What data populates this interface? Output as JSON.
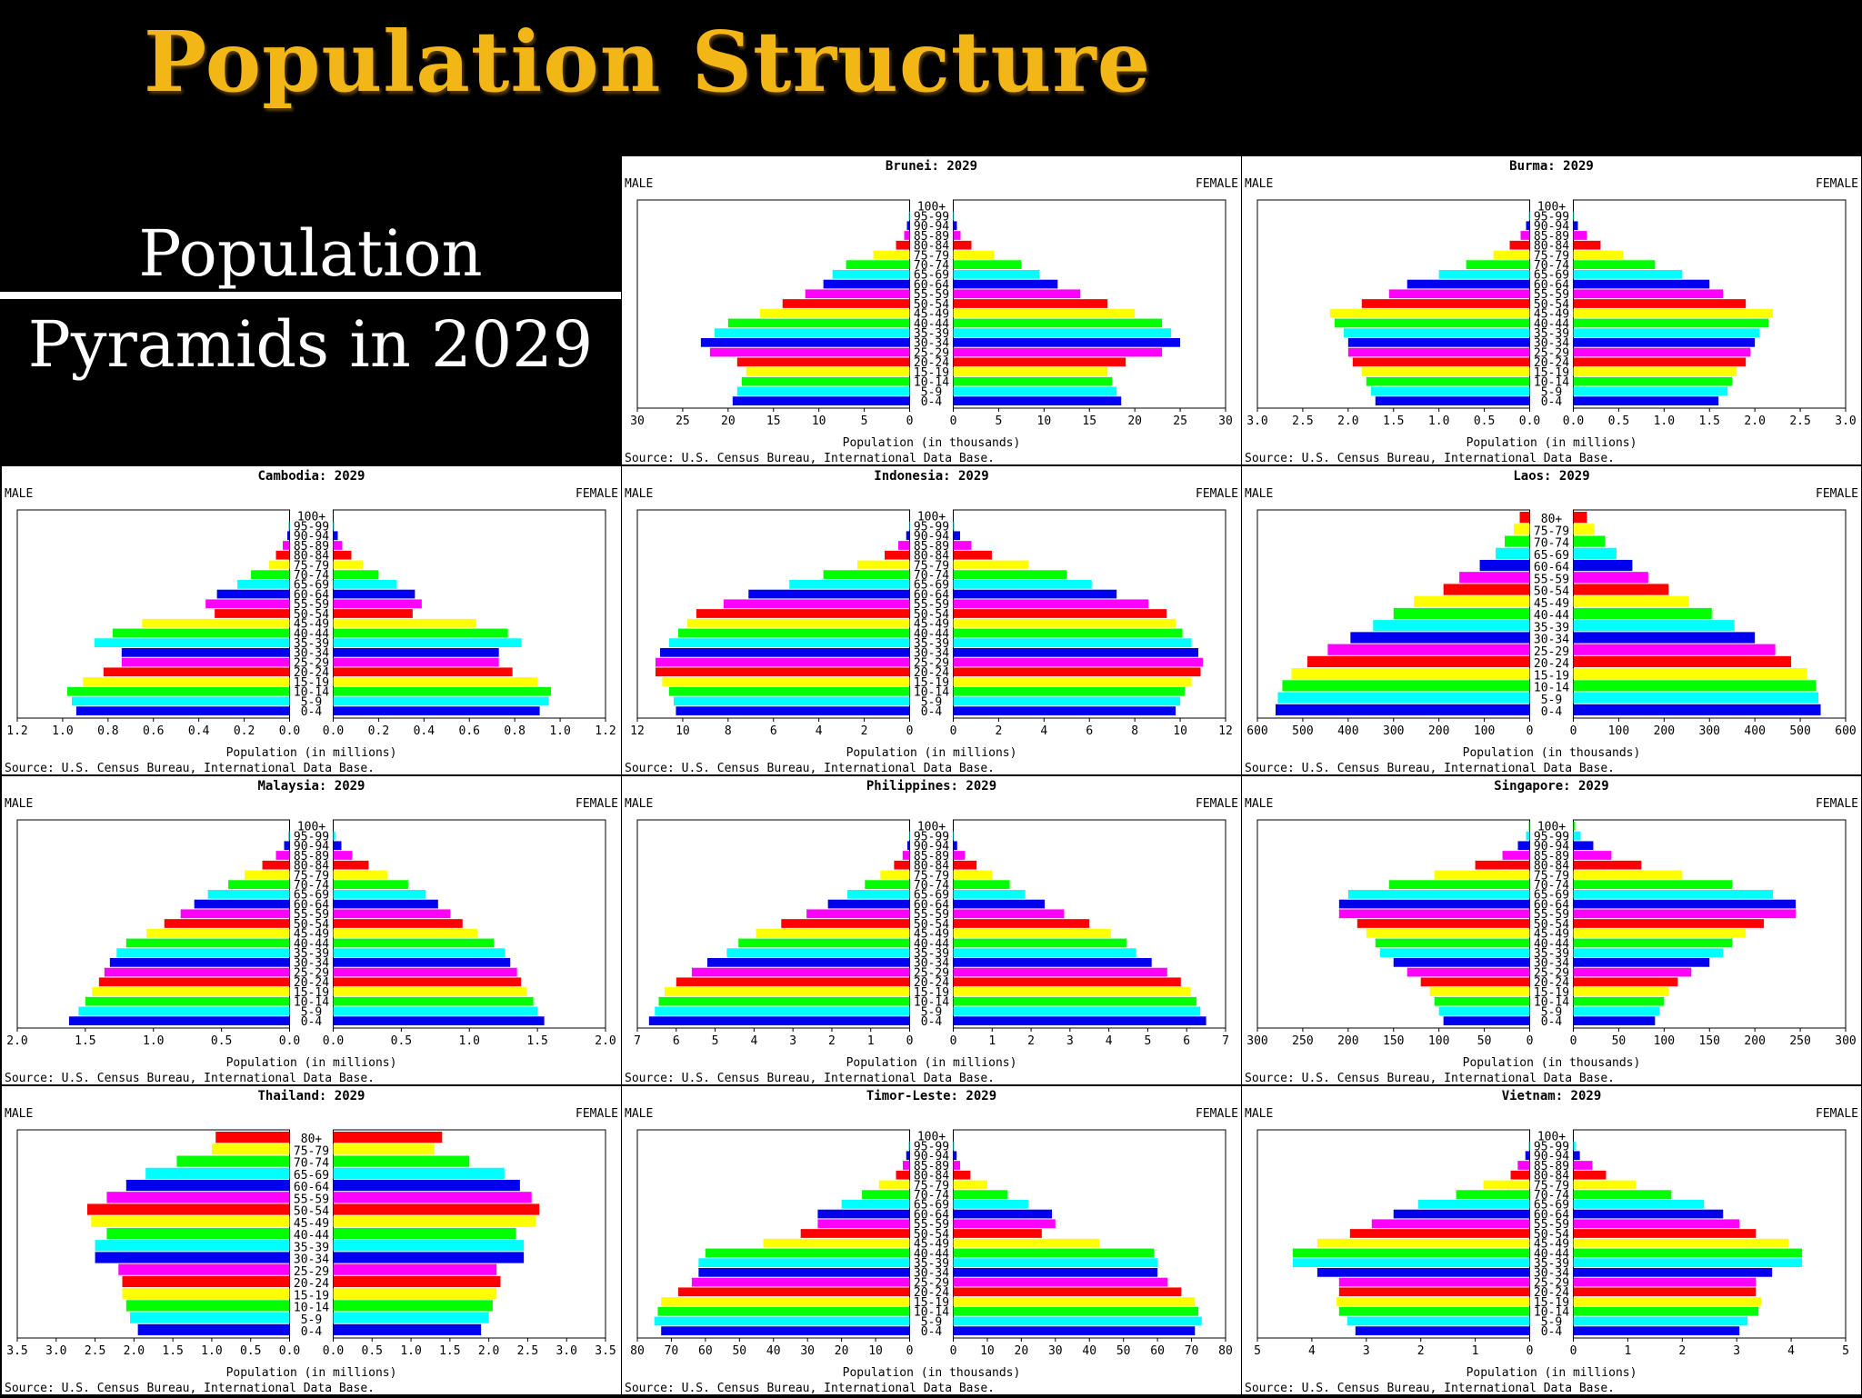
{
  "title": "Population Structure",
  "subtitle": [
    "Population",
    "Pyramids in 2029"
  ],
  "colors": {
    "title": "#F2B617",
    "bands": [
      "#0000EE",
      "#00FFFF",
      "#00FF00",
      "#FFFF00",
      "#FF0000",
      "#FF00FF"
    ]
  },
  "chart_data": [
    {
      "type": "bar",
      "country": "Brunei",
      "title": "Brunei: 2029",
      "male_label": "MALE",
      "female_label": "FEMALE",
      "xlabel": "Population (in thousands)",
      "source": "Source: U.S. Census Bureau, International Data Base.",
      "xlim": [
        0,
        30
      ],
      "ticks": [
        "30",
        "25",
        "20",
        "15",
        "10",
        "5",
        "0",
        "0",
        "5",
        "10",
        "15",
        "20",
        "25",
        "30"
      ],
      "age_groups": [
        "0-4",
        "5-9",
        "10-14",
        "15-19",
        "20-24",
        "25-29",
        "30-34",
        "35-39",
        "40-44",
        "45-49",
        "50-54",
        "55-59",
        "60-64",
        "65-69",
        "70-74",
        "75-79",
        "80-84",
        "85-89",
        "90-94",
        "95-99",
        "100+"
      ],
      "male": [
        19.5,
        19,
        18.5,
        18,
        19,
        22,
        23,
        21.5,
        20,
        16.5,
        14,
        11.5,
        9.5,
        8.5,
        7,
        4,
        1.5,
        0.6,
        0.3,
        0.1,
        0
      ],
      "female": [
        18.5,
        18,
        17.5,
        17,
        19,
        23,
        25,
        24,
        23,
        20,
        17,
        14,
        11.5,
        9.5,
        7.5,
        4.5,
        2,
        0.8,
        0.4,
        0.1,
        0
      ]
    },
    {
      "type": "bar",
      "country": "Burma",
      "title": "Burma: 2029",
      "male_label": "MALE",
      "female_label": "FEMALE",
      "xlabel": "Population (in millions)",
      "source": "Source: U.S. Census Bureau, International Data Base.",
      "xlim": [
        0,
        3.0
      ],
      "ticks": [
        "3.0",
        "2.5",
        "2.0",
        "1.5",
        "1.0",
        "0.5",
        "0.0",
        "0.0",
        "0.5",
        "1.0",
        "1.5",
        "2.0",
        "2.5",
        "3.0"
      ],
      "age_groups": [
        "0-4",
        "5-9",
        "10-14",
        "15-19",
        "20-24",
        "25-29",
        "30-34",
        "35-39",
        "40-44",
        "45-49",
        "50-54",
        "55-59",
        "60-64",
        "65-69",
        "70-74",
        "75-79",
        "80-84",
        "85-89",
        "90-94",
        "95-99",
        "100+"
      ],
      "male": [
        1.7,
        1.75,
        1.8,
        1.85,
        1.95,
        2.0,
        2.0,
        2.05,
        2.15,
        2.2,
        1.85,
        1.55,
        1.35,
        1.0,
        0.7,
        0.4,
        0.22,
        0.1,
        0.04,
        0.01,
        0
      ],
      "female": [
        1.6,
        1.7,
        1.75,
        1.8,
        1.9,
        1.95,
        2.0,
        2.05,
        2.15,
        2.2,
        1.9,
        1.65,
        1.5,
        1.2,
        0.9,
        0.55,
        0.3,
        0.15,
        0.05,
        0.01,
        0
      ]
    },
    {
      "type": "bar",
      "country": "Cambodia",
      "title": "Cambodia: 2029",
      "male_label": "MALE",
      "female_label": "FEMALE",
      "xlabel": "Population (in millions)",
      "source": "Source: U.S. Census Bureau, International Data Base.",
      "xlim": [
        0,
        1.2
      ],
      "ticks": [
        "1.2",
        "1.0",
        "0.8",
        "0.6",
        "0.4",
        "0.2",
        "0.0",
        "0.0",
        "0.2",
        "0.4",
        "0.6",
        "0.8",
        "1.0",
        "1.2"
      ],
      "age_groups": [
        "0-4",
        "5-9",
        "10-14",
        "15-19",
        "20-24",
        "25-29",
        "30-34",
        "35-39",
        "40-44",
        "45-49",
        "50-54",
        "55-59",
        "60-64",
        "65-69",
        "70-74",
        "75-79",
        "80-84",
        "85-89",
        "90-94",
        "95-99",
        "100+"
      ],
      "male": [
        0.94,
        0.96,
        0.98,
        0.91,
        0.82,
        0.74,
        0.74,
        0.86,
        0.78,
        0.65,
        0.33,
        0.37,
        0.32,
        0.23,
        0.17,
        0.09,
        0.06,
        0.03,
        0.01,
        0.005,
        0
      ],
      "female": [
        0.91,
        0.95,
        0.96,
        0.9,
        0.79,
        0.73,
        0.73,
        0.83,
        0.77,
        0.63,
        0.35,
        0.39,
        0.36,
        0.28,
        0.2,
        0.13,
        0.08,
        0.04,
        0.02,
        0.005,
        0
      ]
    },
    {
      "type": "bar",
      "country": "Indonesia",
      "title": "Indonesia: 2029",
      "male_label": "MALE",
      "female_label": "FEMALE",
      "xlabel": "Population (in millions)",
      "source": "Source: U.S. Census Bureau, International Data Base.",
      "xlim": [
        0,
        12
      ],
      "ticks": [
        "12",
        "10",
        "8",
        "6",
        "4",
        "2",
        "0",
        "0",
        "2",
        "4",
        "6",
        "8",
        "10",
        "12"
      ],
      "age_groups": [
        "0-4",
        "5-9",
        "10-14",
        "15-19",
        "20-24",
        "25-29",
        "30-34",
        "35-39",
        "40-44",
        "45-49",
        "50-54",
        "55-59",
        "60-64",
        "65-69",
        "70-74",
        "75-79",
        "80-84",
        "85-89",
        "90-94",
        "95-99",
        "100+"
      ],
      "male": [
        10.3,
        10.4,
        10.6,
        10.9,
        11.2,
        11.2,
        11.0,
        10.6,
        10.2,
        9.8,
        9.4,
        8.2,
        7.1,
        5.3,
        3.8,
        2.3,
        1.1,
        0.5,
        0.15,
        0.03,
        0
      ],
      "female": [
        9.8,
        10.0,
        10.2,
        10.5,
        10.9,
        11.0,
        10.8,
        10.5,
        10.1,
        9.8,
        9.4,
        8.6,
        7.2,
        6.1,
        5.0,
        3.3,
        1.7,
        0.8,
        0.3,
        0.05,
        0
      ]
    },
    {
      "type": "bar",
      "country": "Laos",
      "title": "Laos: 2029",
      "male_label": "MALE",
      "female_label": "FEMALE",
      "xlabel": "Population (in thousands)",
      "source": "Source: U.S. Census Bureau, International Data Base.",
      "xlim": [
        0,
        600
      ],
      "ticks": [
        "600",
        "500",
        "400",
        "300",
        "200",
        "100",
        "0",
        "0",
        "100",
        "200",
        "300",
        "400",
        "500",
        "600"
      ],
      "age_groups": [
        "0-4",
        "5-9",
        "10-14",
        "15-19",
        "20-24",
        "25-29",
        "30-34",
        "35-39",
        "40-44",
        "45-49",
        "50-54",
        "55-59",
        "60-64",
        "65-69",
        "70-74",
        "75-79",
        "80+"
      ],
      "male": [
        560,
        555,
        545,
        525,
        490,
        445,
        395,
        345,
        300,
        255,
        190,
        155,
        110,
        75,
        55,
        35,
        22
      ],
      "female": [
        545,
        540,
        535,
        515,
        480,
        445,
        400,
        355,
        305,
        255,
        210,
        165,
        130,
        95,
        70,
        45,
        30
      ]
    },
    {
      "type": "bar",
      "country": "Malaysia",
      "title": "Malaysia: 2029",
      "male_label": "MALE",
      "female_label": "FEMALE",
      "xlabel": "Population (in millions)",
      "source": "Source: U.S. Census Bureau, International Data Base.",
      "xlim": [
        0,
        2.0
      ],
      "ticks": [
        "2.0",
        "1.5",
        "1.0",
        "0.5",
        "0.0",
        "0.0",
        "0.5",
        "1.0",
        "1.5",
        "2.0"
      ],
      "age_groups": [
        "0-4",
        "5-9",
        "10-14",
        "15-19",
        "20-24",
        "25-29",
        "30-34",
        "35-39",
        "40-44",
        "45-49",
        "50-54",
        "55-59",
        "60-64",
        "65-69",
        "70-74",
        "75-79",
        "80-84",
        "85-89",
        "90-94",
        "95-99",
        "100+"
      ],
      "male": [
        1.62,
        1.55,
        1.5,
        1.45,
        1.4,
        1.36,
        1.32,
        1.27,
        1.2,
        1.05,
        0.92,
        0.8,
        0.7,
        0.6,
        0.45,
        0.33,
        0.2,
        0.1,
        0.04,
        0.01,
        0
      ],
      "female": [
        1.55,
        1.5,
        1.47,
        1.42,
        1.38,
        1.35,
        1.3,
        1.26,
        1.18,
        1.06,
        0.95,
        0.86,
        0.77,
        0.68,
        0.55,
        0.4,
        0.26,
        0.14,
        0.06,
        0.015,
        0
      ]
    },
    {
      "type": "bar",
      "country": "Philippines",
      "title": "Philippines: 2029",
      "male_label": "MALE",
      "female_label": "FEMALE",
      "xlabel": "Population (in millions)",
      "source": "Source: U.S. Census Bureau, International Data Base.",
      "xlim": [
        0,
        7
      ],
      "ticks": [
        "7",
        "6",
        "5",
        "4",
        "3",
        "2",
        "1",
        "0",
        "0",
        "1",
        "2",
        "3",
        "4",
        "5",
        "6",
        "7"
      ],
      "age_groups": [
        "0-4",
        "5-9",
        "10-14",
        "15-19",
        "20-24",
        "25-29",
        "30-34",
        "35-39",
        "40-44",
        "45-49",
        "50-54",
        "55-59",
        "60-64",
        "65-69",
        "70-74",
        "75-79",
        "80-84",
        "85-89",
        "90-94",
        "95-99",
        "100+"
      ],
      "male": [
        6.7,
        6.55,
        6.45,
        6.3,
        6.0,
        5.6,
        5.2,
        4.7,
        4.4,
        3.95,
        3.3,
        2.65,
        2.1,
        1.6,
        1.15,
        0.75,
        0.4,
        0.18,
        0.06,
        0.015,
        0
      ],
      "female": [
        6.5,
        6.35,
        6.25,
        6.1,
        5.85,
        5.5,
        5.1,
        4.7,
        4.45,
        4.05,
        3.5,
        2.85,
        2.35,
        1.85,
        1.45,
        1.0,
        0.6,
        0.3,
        0.1,
        0.02,
        0
      ]
    },
    {
      "type": "bar",
      "country": "Singapore",
      "title": "Singapore: 2029",
      "male_label": "MALE",
      "female_label": "FEMALE",
      "xlabel": "Population (in thousands)",
      "source": "Source: U.S. Census Bureau, International Data Base.",
      "xlim": [
        0,
        300
      ],
      "ticks": [
        "300",
        "250",
        "200",
        "150",
        "100",
        "50",
        "0",
        "0",
        "50",
        "100",
        "150",
        "200",
        "250",
        "300"
      ],
      "age_groups": [
        "0-4",
        "5-9",
        "10-14",
        "15-19",
        "20-24",
        "25-29",
        "30-34",
        "35-39",
        "40-44",
        "45-49",
        "50-54",
        "55-59",
        "60-64",
        "65-69",
        "70-74",
        "75-79",
        "80-84",
        "85-89",
        "90-94",
        "95-99",
        "100+"
      ],
      "male": [
        95,
        100,
        105,
        110,
        120,
        135,
        150,
        165,
        170,
        180,
        190,
        210,
        210,
        200,
        155,
        105,
        60,
        30,
        13,
        4,
        1
      ],
      "female": [
        90,
        95,
        100,
        105,
        115,
        130,
        150,
        165,
        175,
        190,
        210,
        245,
        245,
        220,
        175,
        120,
        75,
        42,
        22,
        8,
        2
      ]
    },
    {
      "type": "bar",
      "country": "Thailand",
      "title": "Thailand: 2029",
      "male_label": "MALE",
      "female_label": "FEMALE",
      "xlabel": "Population (in millions)",
      "source": "Source: U.S. Census Bureau, International Data Base.",
      "xlim": [
        0,
        3.5
      ],
      "ticks": [
        "3.5",
        "3.0",
        "2.5",
        "2.0",
        "1.5",
        "1.0",
        "0.5",
        "0.0",
        "0.0",
        "0.5",
        "1.0",
        "1.5",
        "2.0",
        "2.5",
        "3.0",
        "3.5"
      ],
      "age_groups": [
        "0-4",
        "5-9",
        "10-14",
        "15-19",
        "20-24",
        "25-29",
        "30-34",
        "35-39",
        "40-44",
        "45-49",
        "50-54",
        "55-59",
        "60-64",
        "65-69",
        "70-74",
        "75-79",
        "80+"
      ],
      "male": [
        1.95,
        2.05,
        2.1,
        2.15,
        2.15,
        2.2,
        2.5,
        2.5,
        2.35,
        2.55,
        2.6,
        2.35,
        2.1,
        1.85,
        1.45,
        1.0,
        0.95
      ],
      "female": [
        1.9,
        2.0,
        2.05,
        2.1,
        2.15,
        2.1,
        2.45,
        2.45,
        2.35,
        2.6,
        2.65,
        2.55,
        2.4,
        2.2,
        1.75,
        1.3,
        1.4
      ]
    },
    {
      "type": "bar",
      "country": "Timor-Leste",
      "title": "Timor-Leste: 2029",
      "male_label": "MALE",
      "female_label": "FEMALE",
      "xlabel": "Population (in thousands)",
      "source": "Source: U.S. Census Bureau, International Data Base.",
      "xlim": [
        0,
        80
      ],
      "ticks": [
        "80",
        "70",
        "60",
        "50",
        "40",
        "30",
        "20",
        "10",
        "0",
        "0",
        "10",
        "20",
        "30",
        "40",
        "50",
        "60",
        "70",
        "80"
      ],
      "age_groups": [
        "0-4",
        "5-9",
        "10-14",
        "15-19",
        "20-24",
        "25-29",
        "30-34",
        "35-39",
        "40-44",
        "45-49",
        "50-54",
        "55-59",
        "60-64",
        "65-69",
        "70-74",
        "75-79",
        "80-84",
        "85-89",
        "90-94",
        "95-99",
        "100+"
      ],
      "male": [
        73,
        75,
        74,
        73,
        68,
        64,
        62,
        62,
        60,
        43,
        32,
        27,
        27,
        20,
        14,
        9,
        4,
        2,
        1,
        0.3,
        0
      ],
      "female": [
        71,
        73,
        72,
        71,
        67,
        63,
        60,
        60,
        59,
        43,
        26,
        30,
        29,
        22,
        16,
        10,
        5,
        2,
        1,
        0.3,
        0
      ]
    },
    {
      "type": "bar",
      "country": "Vietnam",
      "title": "Vietnam: 2029",
      "male_label": "MALE",
      "female_label": "FEMALE",
      "xlabel": "Population (in millions)",
      "source": "Source: U.S. Census Bureau, International Data Base.",
      "xlim": [
        0,
        5
      ],
      "ticks": [
        "5",
        "4",
        "3",
        "2",
        "1",
        "0",
        "0",
        "1",
        "2",
        "3",
        "4",
        "5"
      ],
      "age_groups": [
        "0-4",
        "5-9",
        "10-14",
        "15-19",
        "20-24",
        "25-29",
        "30-34",
        "35-39",
        "40-44",
        "45-49",
        "50-54",
        "55-59",
        "60-64",
        "65-69",
        "70-74",
        "75-79",
        "80-84",
        "85-89",
        "90-94",
        "95-99",
        "100+"
      ],
      "male": [
        3.2,
        3.35,
        3.5,
        3.55,
        3.5,
        3.5,
        3.9,
        4.35,
        4.35,
        3.9,
        3.3,
        2.9,
        2.5,
        2.05,
        1.35,
        0.85,
        0.35,
        0.22,
        0.08,
        0.02,
        0
      ],
      "female": [
        3.05,
        3.2,
        3.4,
        3.45,
        3.35,
        3.35,
        3.65,
        4.2,
        4.2,
        3.95,
        3.35,
        3.05,
        2.75,
        2.4,
        1.8,
        1.15,
        0.6,
        0.35,
        0.12,
        0.04,
        0
      ]
    }
  ]
}
